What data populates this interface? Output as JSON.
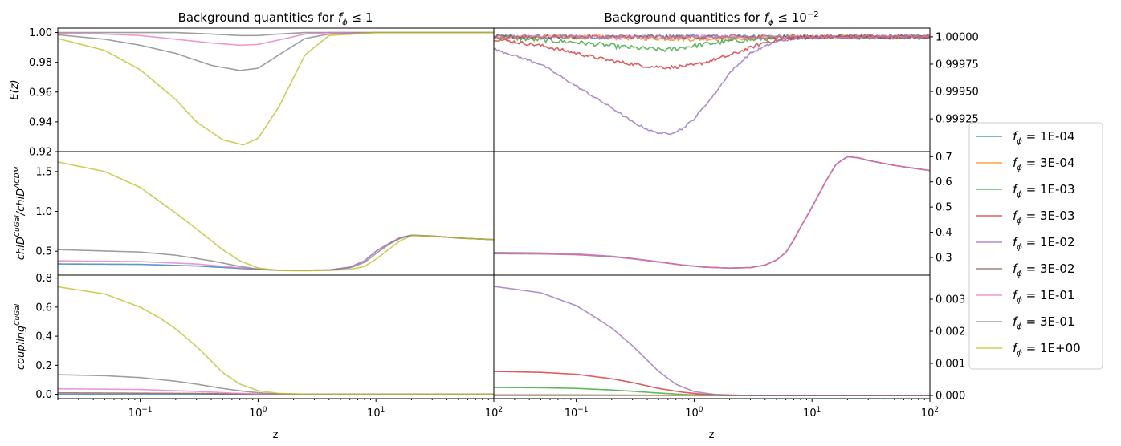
{
  "figure": {
    "titles": [
      "Background quantities for $f_\\phi \\leq 1$",
      "Background quantities for $f_\\phi \\leq 10^{-2}$"
    ],
    "xlabel": "z",
    "ylabels": [
      "$E(z)$",
      "$chiD^{CuGal}/chiD^{\\Lambda CDM}$",
      "$coupling^{CuGal}$"
    ]
  },
  "legend": {
    "placement": "center-right",
    "entries": [
      {
        "label": "$f_\\phi = $1E-04",
        "color": "#1f77b4"
      },
      {
        "label": "$f_\\phi = $3E-04",
        "color": "#ff7f0e"
      },
      {
        "label": "$f_\\phi = $1E-03",
        "color": "#2ca02c"
      },
      {
        "label": "$f_\\phi = $3E-03",
        "color": "#d62728"
      },
      {
        "label": "$f_\\phi = $1E-02",
        "color": "#9467bd"
      },
      {
        "label": "$f_\\phi = $3E-02",
        "color": "#8c564b"
      },
      {
        "label": "$f_\\phi = $1E-01",
        "color": "#e377c2"
      },
      {
        "label": "$f_\\phi = $3E-01",
        "color": "#7f7f7f"
      },
      {
        "label": "$f_\\phi = $1E+00",
        "color": "#bcbd22"
      }
    ]
  },
  "chart_data": [
    {
      "type": "line",
      "panel": "E(z), f_phi <= 1",
      "xscale": "log",
      "xlim": [
        0.02,
        100
      ],
      "ylim": [
        0.92,
        1.003
      ],
      "yticks": [
        0.92,
        0.94,
        0.96,
        0.98,
        1.0
      ],
      "ytick_labels": [
        "0.92",
        "0.94",
        "0.96",
        "0.98",
        "1.00"
      ],
      "yaxis_side": "left",
      "series": [
        {
          "color": "#7f7f7f",
          "x": [
            0.02,
            0.05,
            0.1,
            0.2,
            0.4,
            0.7,
            1.0,
            1.5,
            2.5,
            4,
            10,
            100
          ],
          "y": [
            1.0,
            1.0,
            1.0,
            1.0,
            0.999,
            0.998,
            0.998,
            0.999,
            1.0,
            1.0,
            1.0,
            1.0
          ]
        },
        {
          "color": "#e377c2",
          "x": [
            0.02,
            0.05,
            0.1,
            0.2,
            0.4,
            0.7,
            1.0,
            1.5,
            2.5,
            4,
            10,
            100
          ],
          "y": [
            0.9995,
            0.999,
            0.998,
            0.9955,
            0.993,
            0.9915,
            0.992,
            0.995,
            0.999,
            1.0,
            1.0,
            1.0
          ]
        },
        {
          "color": "#7f7f7f",
          "x": [
            0.02,
            0.05,
            0.1,
            0.2,
            0.4,
            0.7,
            1.0,
            1.5,
            2.5,
            4,
            10,
            100
          ],
          "y": [
            0.9985,
            0.9955,
            0.9915,
            0.986,
            0.978,
            0.9745,
            0.976,
            0.985,
            0.996,
            0.999,
            1.0,
            1.0
          ]
        },
        {
          "color": "#bcbd22",
          "x": [
            0.02,
            0.05,
            0.1,
            0.2,
            0.3,
            0.5,
            0.75,
            1.0,
            1.5,
            2.5,
            4,
            10,
            100
          ],
          "y": [
            0.996,
            0.988,
            0.975,
            0.955,
            0.94,
            0.928,
            0.9245,
            0.929,
            0.95,
            0.985,
            0.998,
            1.0,
            1.0
          ]
        }
      ]
    },
    {
      "type": "line",
      "panel": "E(z), f_phi <= 1e-2",
      "xscale": "log",
      "xlim": [
        0.02,
        100
      ],
      "ylim": [
        0.99895,
        1.00008
      ],
      "yticks": [
        0.99925,
        0.9995,
        0.99975,
        1.0
      ],
      "ytick_labels": [
        "0.99925",
        "0.99950",
        "0.99975",
        "1.00000"
      ],
      "yaxis_side": "right",
      "series": [
        {
          "color": "#1f77b4",
          "x": [
            0.02,
            0.1,
            1,
            10,
            100
          ],
          "y": [
            1.0,
            1.0,
            1.0,
            1.0,
            1.0
          ],
          "noise": 2e-05
        },
        {
          "color": "#ff7f0e",
          "x": [
            0.02,
            0.1,
            1,
            10,
            100
          ],
          "y": [
            1.0,
            1.0,
            0.99998,
            1.0,
            1.0
          ],
          "noise": 2e-05
        },
        {
          "color": "#2ca02c",
          "x": [
            0.02,
            0.1,
            0.3,
            0.6,
            1,
            2,
            5,
            10,
            100
          ],
          "y": [
            1.0,
            0.99995,
            0.9999,
            0.99988,
            0.99992,
            0.99996,
            0.99999,
            1.0,
            1.0
          ],
          "noise": 2e-05
        },
        {
          "color": "#d62728",
          "x": [
            0.02,
            0.05,
            0.1,
            0.2,
            0.4,
            0.6,
            1,
            2,
            4,
            7,
            10,
            100
          ],
          "y": [
            0.99998,
            0.99992,
            0.99985,
            0.99978,
            0.99973,
            0.99972,
            0.99974,
            0.99983,
            0.99995,
            0.99999,
            1.0,
            1.0
          ],
          "noise": 1.5e-05
        },
        {
          "color": "#9467bd",
          "x": [
            0.02,
            0.05,
            0.1,
            0.2,
            0.3,
            0.45,
            0.6,
            0.8,
            1.0,
            1.5,
            2,
            3,
            5,
            10,
            100
          ],
          "y": [
            0.99989,
            0.99975,
            0.99955,
            0.99935,
            0.99922,
            0.99913,
            0.99911,
            0.99916,
            0.99925,
            0.99948,
            0.99967,
            0.99985,
            0.99996,
            1.0,
            1.0
          ],
          "noise": 1e-05
        },
        {
          "color": "#8c564b",
          "x": [
            0.02,
            1,
            4,
            10,
            100
          ],
          "y": [
            1.0,
            1.0,
            1.0,
            1.0,
            1.0
          ],
          "noise": 2e-05
        },
        {
          "color": "#e377c2",
          "x": [
            0.02,
            1,
            4,
            10,
            100
          ],
          "y": [
            1.0,
            1.0,
            1.0,
            1.0,
            1.0
          ],
          "noise": 1.5e-05
        }
      ]
    },
    {
      "type": "line",
      "panel": "chiD ratio, f_phi <= 1",
      "xscale": "log",
      "xlim": [
        0.02,
        100
      ],
      "ylim": [
        0.2,
        1.75
      ],
      "yticks": [
        0.5,
        1.0,
        1.5
      ],
      "ytick_labels": [
        "0.5",
        "1.0",
        "1.5"
      ],
      "yaxis_side": "left",
      "series": [
        {
          "color": "#1f77b4",
          "x": [
            0.02,
            0.1,
            0.3,
            0.6,
            1.0,
            1.5,
            2.5,
            4,
            6,
            8,
            10,
            13,
            16,
            20,
            30,
            50,
            100
          ],
          "y": [
            0.34,
            0.335,
            0.315,
            0.29,
            0.27,
            0.262,
            0.262,
            0.265,
            0.3,
            0.38,
            0.5,
            0.6,
            0.67,
            0.7,
            0.69,
            0.665,
            0.645
          ]
        },
        {
          "color": "#e377c2",
          "x": [
            0.02,
            0.1,
            0.3,
            0.6,
            1.0,
            1.5,
            2.5,
            4,
            6,
            8,
            10,
            13,
            16,
            20,
            30,
            50,
            100
          ],
          "y": [
            0.38,
            0.37,
            0.34,
            0.3,
            0.275,
            0.263,
            0.262,
            0.265,
            0.3,
            0.38,
            0.5,
            0.6,
            0.67,
            0.7,
            0.69,
            0.665,
            0.645
          ]
        },
        {
          "color": "#7f7f7f",
          "x": [
            0.02,
            0.1,
            0.2,
            0.4,
            0.7,
            1.0,
            1.5,
            2.5,
            4,
            6,
            8,
            10,
            13,
            16,
            20,
            30,
            50,
            100
          ],
          "y": [
            0.52,
            0.49,
            0.45,
            0.38,
            0.31,
            0.275,
            0.262,
            0.26,
            0.264,
            0.29,
            0.36,
            0.47,
            0.59,
            0.66,
            0.7,
            0.69,
            0.665,
            0.645
          ]
        },
        {
          "color": "#bcbd22",
          "x": [
            0.02,
            0.05,
            0.1,
            0.2,
            0.3,
            0.5,
            0.7,
            1.0,
            1.5,
            2.5,
            4,
            6,
            8,
            10,
            13,
            16,
            20,
            30,
            50,
            100
          ],
          "y": [
            1.62,
            1.5,
            1.3,
            0.98,
            0.78,
            0.52,
            0.38,
            0.29,
            0.258,
            0.255,
            0.26,
            0.27,
            0.31,
            0.4,
            0.53,
            0.63,
            0.695,
            0.69,
            0.665,
            0.645
          ]
        }
      ]
    },
    {
      "type": "line",
      "panel": "chiD ratio, f_phi <= 1e-2",
      "xscale": "log",
      "xlim": [
        0.02,
        100
      ],
      "ylim": [
        0.23,
        0.72
      ],
      "yticks": [
        0.3,
        0.4,
        0.5,
        0.6,
        0.7
      ],
      "ytick_labels": [
        "0.3",
        "0.4",
        "0.5",
        "0.6",
        "0.7"
      ],
      "yaxis_side": "right",
      "series": [
        {
          "color": "#9467bd",
          "x": [
            0.02,
            0.05,
            0.1,
            0.2,
            0.3,
            0.5,
            0.8,
            1.2,
            2,
            3,
            4,
            5,
            6,
            7,
            8,
            10,
            13,
            16,
            20,
            25,
            30,
            50,
            100
          ],
          "y": [
            0.32,
            0.318,
            0.314,
            0.305,
            0.296,
            0.283,
            0.27,
            0.262,
            0.258,
            0.26,
            0.27,
            0.29,
            0.32,
            0.37,
            0.42,
            0.5,
            0.6,
            0.67,
            0.7,
            0.695,
            0.685,
            0.665,
            0.645
          ]
        },
        {
          "color": "#8c564b",
          "x": [
            0.02,
            0.05,
            0.1,
            0.2,
            0.3,
            0.5,
            0.8,
            1.2,
            2,
            3,
            4,
            5,
            6,
            7,
            8,
            10,
            13,
            16,
            20,
            25,
            30,
            50,
            100
          ],
          "y": [
            0.315,
            0.314,
            0.311,
            0.303,
            0.295,
            0.282,
            0.27,
            0.262,
            0.258,
            0.26,
            0.27,
            0.29,
            0.32,
            0.37,
            0.42,
            0.5,
            0.6,
            0.67,
            0.7,
            0.695,
            0.685,
            0.665,
            0.645
          ]
        },
        {
          "color": "#e377c2",
          "x": [
            0.02,
            0.05,
            0.1,
            0.2,
            0.3,
            0.5,
            0.8,
            1.2,
            2,
            3,
            4,
            5,
            6,
            7,
            8,
            10,
            13,
            16,
            20,
            25,
            30,
            50,
            100
          ],
          "y": [
            0.317,
            0.315,
            0.312,
            0.304,
            0.295,
            0.282,
            0.27,
            0.262,
            0.258,
            0.26,
            0.27,
            0.29,
            0.32,
            0.37,
            0.42,
            0.5,
            0.6,
            0.67,
            0.7,
            0.695,
            0.685,
            0.665,
            0.645
          ]
        }
      ]
    },
    {
      "type": "line",
      "panel": "coupling, f_phi <= 1",
      "xscale": "log",
      "xlim": [
        0.02,
        100
      ],
      "ylim": [
        -0.03,
        0.82
      ],
      "yticks": [
        0.0,
        0.2,
        0.4,
        0.6,
        0.8
      ],
      "ytick_labels": [
        "0.0",
        "0.2",
        "0.4",
        "0.6",
        "0.8"
      ],
      "yaxis_side": "left",
      "series": [
        {
          "color": "#1f77b4",
          "x": [
            0.02,
            1,
            100
          ],
          "y": [
            0.0,
            0.0,
            0.0
          ]
        },
        {
          "color": "#8c564b",
          "x": [
            0.02,
            0.3,
            1,
            100
          ],
          "y": [
            0.01,
            0.006,
            0.0,
            0.0
          ]
        },
        {
          "color": "#e377c2",
          "x": [
            0.02,
            0.1,
            0.3,
            0.6,
            1.0,
            2,
            100
          ],
          "y": [
            0.038,
            0.033,
            0.02,
            0.008,
            0.002,
            0.0,
            0.0
          ]
        },
        {
          "color": "#7f7f7f",
          "x": [
            0.02,
            0.05,
            0.1,
            0.2,
            0.3,
            0.5,
            0.8,
            1.2,
            2,
            4,
            100
          ],
          "y": [
            0.135,
            0.128,
            0.115,
            0.09,
            0.07,
            0.04,
            0.018,
            0.006,
            0.001,
            0.0,
            0.0
          ]
        },
        {
          "color": "#bcbd22",
          "x": [
            0.02,
            0.05,
            0.1,
            0.15,
            0.2,
            0.3,
            0.4,
            0.5,
            0.7,
            1.0,
            1.5,
            2.5,
            5,
            100
          ],
          "y": [
            0.74,
            0.69,
            0.6,
            0.52,
            0.45,
            0.33,
            0.23,
            0.15,
            0.07,
            0.025,
            0.006,
            0.001,
            0.0,
            0.0
          ]
        }
      ]
    },
    {
      "type": "line",
      "panel": "coupling, f_phi <= 1e-2",
      "xscale": "log",
      "xlim": [
        0.02,
        100
      ],
      "ylim": [
        -0.0001,
        0.00375
      ],
      "yticks": [
        0.0,
        0.001,
        0.002,
        0.003
      ],
      "ytick_labels": [
        "0.000",
        "0.001",
        "0.002",
        "0.003"
      ],
      "yaxis_side": "right",
      "series": [
        {
          "color": "#1f77b4",
          "x": [
            0.02,
            100
          ],
          "y": [
            0.0,
            0.0
          ]
        },
        {
          "color": "#ff7f0e",
          "x": [
            0.02,
            0.1,
            0.3,
            1,
            3,
            100
          ],
          "y": [
            2.5e-05,
            2.2e-05,
            1.2e-05,
            2e-06,
            0.0,
            0.0
          ]
        },
        {
          "color": "#2ca02c",
          "x": [
            0.02,
            0.05,
            0.1,
            0.2,
            0.3,
            0.5,
            0.8,
            1.2,
            2,
            4,
            100
          ],
          "y": [
            0.00025,
            0.00024,
            0.00022,
            0.00017,
            0.00013,
            7.5e-05,
            3e-05,
            1e-05,
            2e-06,
            0.0,
            0.0
          ]
        },
        {
          "color": "#d62728",
          "x": [
            0.02,
            0.05,
            0.1,
            0.2,
            0.3,
            0.5,
            0.8,
            1.2,
            2,
            4,
            100
          ],
          "y": [
            0.00075,
            0.00072,
            0.00066,
            0.00052,
            0.0004,
            0.00022,
            0.0001,
            3.5e-05,
            6e-06,
            0.0,
            0.0
          ]
        },
        {
          "color": "#9467bd",
          "x": [
            0.02,
            0.05,
            0.1,
            0.15,
            0.2,
            0.3,
            0.4,
            0.5,
            0.7,
            1.0,
            1.5,
            2.5,
            5,
            100
          ],
          "y": [
            0.0034,
            0.0032,
            0.0028,
            0.0024,
            0.0021,
            0.00155,
            0.0011,
            0.00075,
            0.00035,
            0.00012,
            3e-05,
            5e-06,
            0.0,
            0.0
          ]
        }
      ]
    }
  ]
}
